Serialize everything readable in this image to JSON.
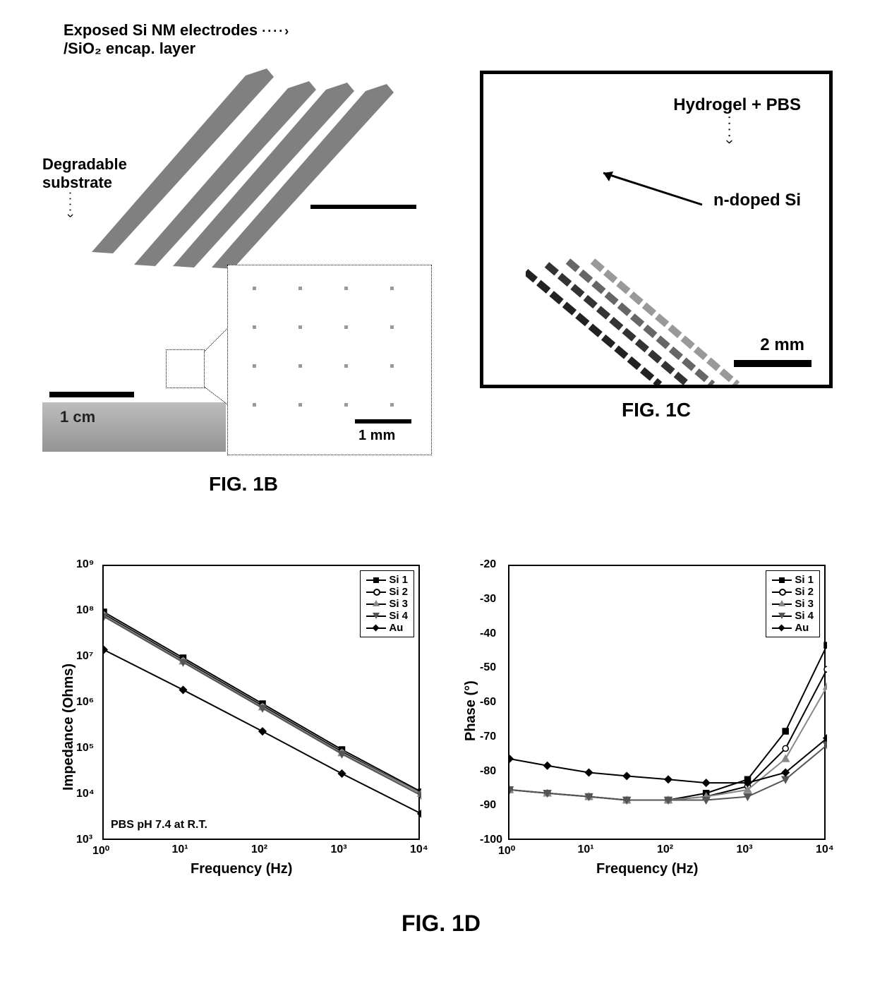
{
  "fig1b": {
    "label_top": "Exposed Si NM electrodes",
    "label_top2": "/SiO₂ encap. layer",
    "label_left": "Degradable",
    "label_left2": "substrate",
    "scalebar_bottom": "1 cm",
    "scalebar_inset": "1 mm",
    "caption": "FIG. 1B",
    "electrode_color": "#808080",
    "substrate_color": "#a8a8a8",
    "bg": "#ffffff",
    "label_fontsize": 22
  },
  "fig1c": {
    "label_r1": "Hydrogel + PBS",
    "label_r2": "n-doped Si",
    "scalebar": "2 mm",
    "caption": "FIG. 1C",
    "border_color": "#000000",
    "trace_colors": [
      "#222222",
      "#444444",
      "#777777",
      "#aaaaaa"
    ]
  },
  "fig1d": {
    "caption": "FIG. 1D",
    "left_chart": {
      "type": "line-loglog",
      "ylabel": "Impedance (Ohms)",
      "xlabel": "Frequency (Hz)",
      "note": "PBS pH 7.4 at R.T.",
      "xlim": [
        1,
        10000
      ],
      "ylim": [
        1000,
        1000000000
      ],
      "xticks": [
        "10⁰",
        "10¹",
        "10²",
        "10³",
        "10⁴"
      ],
      "yticks": [
        "10³",
        "10⁴",
        "10⁵",
        "10⁶",
        "10⁷",
        "10⁸",
        "10⁹"
      ],
      "series": [
        {
          "name": "Si 1",
          "marker": "square",
          "color": "#000000",
          "x": [
            1,
            10,
            100,
            1000,
            10000
          ],
          "y": [
            100000000.0,
            10000000.0,
            1000000.0,
            100000.0,
            12000.0
          ]
        },
        {
          "name": "Si 2",
          "marker": "circle",
          "color": "#000000",
          "x": [
            1,
            10,
            100,
            1000,
            10000
          ],
          "y": [
            90000000.0,
            9000000.0,
            900000.0,
            90000.0,
            11000.0
          ]
        },
        {
          "name": "Si 3",
          "marker": "triangle",
          "color": "#888888",
          "x": [
            1,
            10,
            100,
            1000,
            10000
          ],
          "y": [
            85000000.0,
            8500000.0,
            850000.0,
            85000.0,
            11000.0
          ]
        },
        {
          "name": "Si 4",
          "marker": "invtri",
          "color": "#555555",
          "x": [
            1,
            10,
            100,
            1000,
            10000
          ],
          "y": [
            80000000.0,
            8000000.0,
            800000.0,
            80000.0,
            10000.0
          ]
        },
        {
          "name": "Au",
          "marker": "diamond",
          "color": "#000000",
          "x": [
            1,
            10,
            100,
            1000,
            10000
          ],
          "y": [
            15000000.0,
            2000000.0,
            250000.0,
            30000.0,
            4000.0
          ]
        }
      ]
    },
    "right_chart": {
      "type": "line-logx",
      "ylabel": "Phase (°)",
      "xlabel": "Frequency (Hz)",
      "xlim": [
        1,
        10000
      ],
      "ylim": [
        -100,
        -20
      ],
      "xticks": [
        "10⁰",
        "10¹",
        "10²",
        "10³",
        "10⁴"
      ],
      "yticks": [
        "-100",
        "-90",
        "-80",
        "-70",
        "-60",
        "-50",
        "-40",
        "-30",
        "-20"
      ],
      "series": [
        {
          "name": "Si 1",
          "marker": "square",
          "color": "#000000",
          "x": [
            1,
            3,
            10,
            30,
            100,
            300,
            1000,
            3000,
            10000
          ],
          "y": [
            -85,
            -86,
            -87,
            -88,
            -88,
            -86,
            -82,
            -68,
            -43
          ]
        },
        {
          "name": "Si 2",
          "marker": "circle",
          "color": "#000000",
          "x": [
            1,
            3,
            10,
            30,
            100,
            300,
            1000,
            3000,
            10000
          ],
          "y": [
            -85,
            -86,
            -87,
            -88,
            -88,
            -87,
            -84,
            -73,
            -50
          ]
        },
        {
          "name": "Si 3",
          "marker": "triangle",
          "color": "#888888",
          "x": [
            1,
            3,
            10,
            30,
            100,
            300,
            1000,
            3000,
            10000
          ],
          "y": [
            -85,
            -86,
            -87,
            -88,
            -88,
            -87,
            -85,
            -76,
            -55
          ]
        },
        {
          "name": "Si 4",
          "marker": "invtri",
          "color": "#555555",
          "x": [
            1,
            3,
            10,
            30,
            100,
            300,
            1000,
            3000,
            10000
          ],
          "y": [
            -85,
            -86,
            -87,
            -88,
            -88,
            -88,
            -87,
            -82,
            -72
          ]
        },
        {
          "name": "Au",
          "marker": "diamond",
          "color": "#000000",
          "x": [
            1,
            3,
            10,
            30,
            100,
            300,
            1000,
            3000,
            10000
          ],
          "y": [
            -76,
            -78,
            -80,
            -81,
            -82,
            -83,
            -83,
            -80,
            -70
          ]
        }
      ]
    }
  }
}
